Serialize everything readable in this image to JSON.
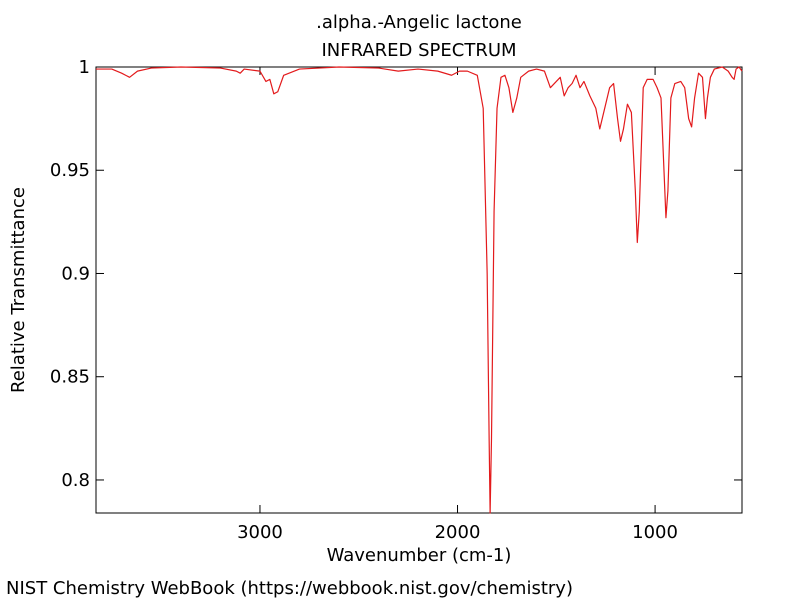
{
  "chart_data": {
    "type": "line",
    "title": ".alpha.-Angelic lactone",
    "subtitle": "INFRARED SPECTRUM",
    "x_label": "Wavenumber (cm-1)",
    "y_label": "Relative Transmittance",
    "source": "NIST Chemistry WebBook (https://webbook.nist.gov/chemistry)",
    "xlim": [
      3830,
      560
    ],
    "ylim": [
      0.784,
      1
    ],
    "xticks": [
      3000,
      2000,
      1000
    ],
    "yticks": [
      1,
      0.95,
      0.9,
      0.85,
      0.8
    ],
    "x": [
      3830,
      3750,
      3700,
      3660,
      3620,
      3550,
      3400,
      3200,
      3120,
      3100,
      3080,
      3000,
      2970,
      2950,
      2930,
      2910,
      2880,
      2800,
      2600,
      2400,
      2300,
      2200,
      2100,
      2030,
      1990,
      1950,
      1900,
      1870,
      1850,
      1840,
      1835,
      1828,
      1815,
      1800,
      1780,
      1760,
      1740,
      1720,
      1700,
      1680,
      1640,
      1600,
      1560,
      1530,
      1500,
      1480,
      1460,
      1440,
      1420,
      1400,
      1380,
      1360,
      1330,
      1300,
      1280,
      1260,
      1230,
      1210,
      1190,
      1175,
      1160,
      1140,
      1120,
      1100,
      1090,
      1080,
      1060,
      1040,
      1010,
      990,
      970,
      955,
      945,
      935,
      920,
      900,
      870,
      850,
      830,
      815,
      800,
      780,
      760,
      745,
      735,
      720,
      700,
      660,
      630,
      610,
      600,
      590,
      575,
      560
    ],
    "series": [
      {
        "name": "spectrum",
        "color": "#e31a1c",
        "values": [
          0.999,
          0.999,
          0.997,
          0.995,
          0.998,
          0.9995,
          1.0,
          0.9995,
          0.998,
          0.997,
          0.999,
          0.998,
          0.993,
          0.994,
          0.987,
          0.988,
          0.996,
          0.999,
          1.0,
          0.9995,
          0.998,
          0.999,
          0.998,
          0.996,
          0.998,
          0.998,
          0.996,
          0.98,
          0.9,
          0.82,
          0.784,
          0.82,
          0.93,
          0.98,
          0.995,
          0.996,
          0.99,
          0.978,
          0.985,
          0.995,
          0.998,
          0.999,
          0.998,
          0.99,
          0.993,
          0.995,
          0.986,
          0.99,
          0.992,
          0.996,
          0.99,
          0.993,
          0.986,
          0.98,
          0.97,
          0.978,
          0.99,
          0.992,
          0.975,
          0.964,
          0.97,
          0.982,
          0.978,
          0.94,
          0.915,
          0.93,
          0.99,
          0.994,
          0.994,
          0.99,
          0.985,
          0.95,
          0.927,
          0.94,
          0.985,
          0.992,
          0.993,
          0.99,
          0.975,
          0.971,
          0.985,
          0.997,
          0.995,
          0.975,
          0.985,
          0.995,
          0.999,
          1.0,
          0.998,
          0.995,
          0.994,
          0.999,
          1.0,
          0.998
        ]
      }
    ]
  }
}
